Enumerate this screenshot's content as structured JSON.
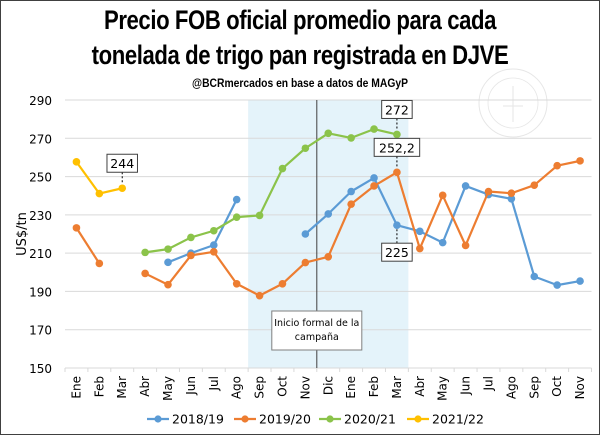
{
  "chart_data": {
    "type": "line",
    "title_line1": "Precio FOB oficial promedio para cada",
    "title_line2": "tonelada de trigo pan registrada en DJVE",
    "subtitle": "@BCRmercados  en base a datos de MAGyP",
    "xlabel": "",
    "ylabel": "US$/tn",
    "ylim": [
      150,
      290
    ],
    "yticks": [
      150,
      170,
      190,
      210,
      230,
      250,
      270,
      290
    ],
    "grid": true,
    "legend_position": "bottom",
    "categories": [
      "Ene",
      "Feb",
      "Mar",
      "Abr",
      "May",
      "Jun",
      "Jul",
      "Ago",
      "Sep",
      "Oct",
      "Nov",
      "Dic",
      "Ene",
      "Feb",
      "Mar",
      "Abr",
      "May",
      "Jun",
      "Jul",
      "Ago",
      "Sep",
      "Oct",
      "Nov"
    ],
    "series": [
      {
        "name": "2018/19",
        "color": "#5B9BD5",
        "values": [
          null,
          null,
          null,
          null,
          205.2,
          210,
          214.2,
          238,
          null,
          null,
          220,
          230.5,
          242.2,
          249.3,
          224.6,
          221.4,
          215.5,
          245.1,
          240.6,
          238.4,
          197.8,
          193.3,
          195.4
        ]
      },
      {
        "name": "2019/20",
        "color": "#ED7D31",
        "values": [
          223.2,
          204.6,
          null,
          199.4,
          193.5,
          208.8,
          210.7,
          194,
          187.8,
          194,
          205.1,
          208.1,
          235.6,
          245.1,
          252.2,
          212.4,
          240.2,
          214,
          242.2,
          241.3,
          245.5,
          255.7,
          258.2
        ]
      },
      {
        "name": "2020/21",
        "color": "#8BC34A",
        "values": [
          null,
          null,
          null,
          210.4,
          212.1,
          218.2,
          221.7,
          228.8,
          229.7,
          254.2,
          264.8,
          272.6,
          270.2,
          274.8,
          272,
          null,
          null,
          null,
          null,
          null,
          null,
          null,
          null
        ]
      },
      {
        "name": "2021/22",
        "color": "#FFC000",
        "values": [
          257.7,
          241.1,
          243.9,
          null,
          null,
          null,
          null,
          null,
          null,
          null,
          null,
          null,
          null,
          null,
          null,
          null,
          null,
          null,
          null,
          null,
          null,
          null,
          null
        ]
      }
    ],
    "annotations": [
      {
        "series": "2021/22",
        "category_index": 2,
        "text": "244",
        "position": "above"
      },
      {
        "series": "2020/21",
        "category_index": 14,
        "text": "272",
        "position": "above"
      },
      {
        "series": "2019/20",
        "category_index": 14,
        "text": "252,2",
        "position": "above"
      },
      {
        "series": "2018/19",
        "category_index": 14,
        "text": "225",
        "position": "below"
      }
    ],
    "shaded_region": {
      "from_category": "Sep",
      "to_category": "Mar",
      "color": "#E4F3FA"
    },
    "marker_line": {
      "between": [
        "Nov",
        "Dic"
      ],
      "label": "Inicio formal de la campaña",
      "label_line1": "Inicio formal de la",
      "label_line2": "campaña"
    }
  }
}
